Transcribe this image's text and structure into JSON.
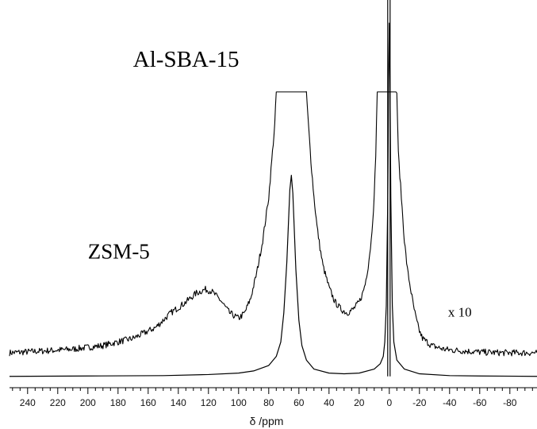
{
  "chart_data": {
    "type": "line",
    "title": "",
    "xlabel": "δ /ppm",
    "ylabel": "",
    "xlim": [
      252,
      -98
    ],
    "x_reversed": true,
    "ylim": [
      0,
      1
    ],
    "grid": false,
    "x_ticks": [
      240,
      220,
      200,
      180,
      160,
      140,
      120,
      100,
      80,
      60,
      40,
      20,
      0,
      -20,
      -40,
      -60,
      -80
    ],
    "x_tick_labels": [
      "240",
      "220",
      "200",
      "180",
      "160",
      "140",
      "120",
      "100",
      "80",
      "60",
      "40",
      "20",
      "0",
      "-20",
      "-40",
      "-60",
      "-80"
    ],
    "annotations": [
      {
        "text": "Al-SBA-15",
        "x": 170,
        "y": 0.86,
        "size": 29
      },
      {
        "text": "ZSM-5",
        "x": 200,
        "y": 0.33,
        "size": 27
      },
      {
        "text": "x 10",
        "x": -39,
        "y": 0.17,
        "size": 17
      }
    ],
    "series": [
      {
        "name": "",
        "scale": "x 1",
        "x": [
          252,
          200,
          150,
          120,
          100,
          90,
          80,
          75,
          72,
          70,
          68,
          66,
          65,
          64,
          62,
          60,
          58,
          55,
          50,
          40,
          30,
          20,
          10,
          6,
          4,
          3,
          2,
          1,
          0.5,
          0,
          -0.5,
          -1,
          -2,
          -3,
          -5,
          -10,
          -20,
          -40,
          -60,
          -98
        ],
        "y": [
          0.005,
          0.006,
          0.007,
          0.01,
          0.014,
          0.02,
          0.035,
          0.06,
          0.1,
          0.18,
          0.32,
          0.52,
          0.56,
          0.51,
          0.3,
          0.16,
          0.09,
          0.05,
          0.025,
          0.014,
          0.012,
          0.014,
          0.025,
          0.04,
          0.06,
          0.1,
          0.2,
          0.5,
          0.8,
          0.98,
          0.8,
          0.5,
          0.2,
          0.1,
          0.05,
          0.025,
          0.012,
          0.007,
          0.006,
          0.005
        ]
      },
      {
        "name": "",
        "scale": "x 10",
        "x": [
          252,
          230,
          210,
          190,
          170,
          155,
          145,
          135,
          128,
          122,
          118,
          112,
          106,
          100,
          96,
          92,
          88,
          84,
          80,
          78,
          76,
          75,
          55,
          54,
          52,
          50,
          48,
          46,
          44,
          42,
          40,
          38,
          36,
          34,
          32,
          30,
          28,
          26,
          24,
          22,
          20,
          18,
          16,
          14,
          12,
          10,
          9,
          8,
          -5,
          -6,
          -8,
          -10,
          -12,
          -14,
          -16,
          -18,
          -20,
          -22,
          -25,
          -28,
          -32,
          -36,
          -40,
          -50,
          -60,
          -75,
          -90,
          -98
        ],
        "y": [
          0.07,
          0.075,
          0.08,
          0.09,
          0.11,
          0.14,
          0.18,
          0.21,
          0.235,
          0.245,
          0.24,
          0.215,
          0.18,
          0.165,
          0.18,
          0.22,
          0.29,
          0.38,
          0.5,
          0.6,
          0.7,
          0.79,
          0.79,
          0.72,
          0.6,
          0.5,
          0.42,
          0.36,
          0.31,
          0.28,
          0.25,
          0.23,
          0.21,
          0.2,
          0.19,
          0.185,
          0.18,
          0.185,
          0.19,
          0.2,
          0.21,
          0.23,
          0.26,
          0.31,
          0.38,
          0.5,
          0.62,
          0.79,
          0.79,
          0.62,
          0.5,
          0.38,
          0.3,
          0.25,
          0.2,
          0.16,
          0.13,
          0.11,
          0.1,
          0.09,
          0.085,
          0.08,
          0.078,
          0.075,
          0.072,
          0.07,
          0.07,
          0.07
        ]
      }
    ],
    "sharp_line": {
      "x": 0,
      "y_min": 0.005,
      "y_max": 1.12
    }
  }
}
